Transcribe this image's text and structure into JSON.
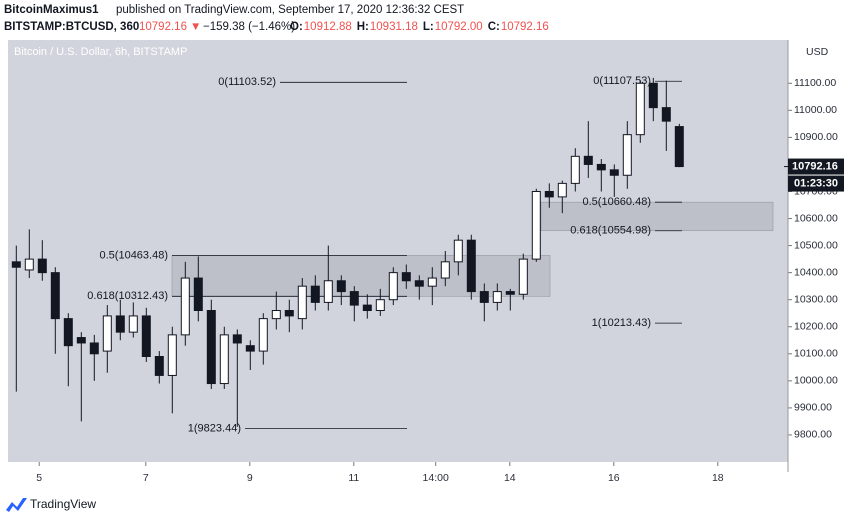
{
  "header": {
    "author": "BitcoinMaximus1",
    "published": "published on TradingView.com, September 17, 2020 12:36:32 CEST",
    "symbol": "BITSTAMP:BTCUSD, 360",
    "price": "10792.16",
    "arrow": "▼",
    "change": "−159.38 (−1.46%)",
    "ohlc": [
      {
        "label": "O:",
        "value": "10912.88"
      },
      {
        "label": "H:",
        "value": "10931.18"
      },
      {
        "label": "L:",
        "value": "10792.00"
      },
      {
        "label": "C:",
        "value": "10792.16"
      }
    ]
  },
  "chart_data": {
    "type": "candlestick",
    "title": "Bitcoin / U.S. Dollar, 6h, BITSTAMP",
    "y_unit": "USD",
    "open": [
      10440,
      10410,
      10450,
      10400,
      10230,
      10160,
      10140,
      10110,
      10240,
      10180,
      10240,
      10090,
      10020,
      10170,
      10380,
      10260,
      9990,
      10170,
      10130,
      10110,
      10230,
      10260,
      10230,
      10350,
      10290,
      10370,
      10330,
      10280,
      10260,
      10300,
      10400,
      10370,
      10350,
      10380,
      10440,
      10520,
      10330,
      10290,
      10330,
      10320,
      10450,
      10700,
      10680,
      10730,
      10830,
      10800,
      10780,
      10760,
      10910,
      11100,
      11010,
      10940
    ],
    "high": [
      10500,
      10560,
      10520,
      10420,
      10250,
      10180,
      10170,
      10280,
      10300,
      10290,
      10270,
      10110,
      10200,
      10440,
      10460,
      10300,
      10200,
      10190,
      10150,
      10250,
      10330,
      10300,
      10380,
      10390,
      10500,
      10390,
      10350,
      10320,
      10340,
      10420,
      10430,
      10390,
      10420,
      10480,
      10540,
      10540,
      10360,
      10360,
      10340,
      10470,
      10710,
      10730,
      10740,
      10860,
      10960,
      10820,
      10800,
      10960,
      11110,
      11120,
      11110,
      10950
    ],
    "low": [
      9960,
      10380,
      10370,
      10100,
      9980,
      9850,
      10000,
      10030,
      10150,
      10160,
      10070,
      9990,
      9880,
      10130,
      10220,
      9970,
      9970,
      9830,
      10040,
      10060,
      10190,
      10180,
      10190,
      10260,
      10260,
      10280,
      10220,
      10230,
      10240,
      10280,
      10340,
      10300,
      10280,
      10350,
      10390,
      10300,
      10220,
      10260,
      10260,
      10300,
      10440,
      10640,
      10620,
      10700,
      10750,
      10700,
      10680,
      10710,
      10880,
      10960,
      10850,
      10790
    ],
    "close": [
      10420,
      10450,
      10400,
      10230,
      10130,
      10140,
      10100,
      10240,
      10180,
      10240,
      10090,
      10020,
      10170,
      10380,
      10260,
      9990,
      10170,
      10140,
      10110,
      10230,
      10260,
      10240,
      10350,
      10290,
      10370,
      10330,
      10280,
      10260,
      10300,
      10400,
      10370,
      10350,
      10380,
      10440,
      10520,
      10330,
      10290,
      10330,
      10320,
      10450,
      10700,
      10680,
      10730,
      10830,
      10800,
      10780,
      10760,
      10910,
      11100,
      11010,
      10960,
      10792.16
    ],
    "ylim": [
      9700,
      11260
    ],
    "yticks": [
      {
        "value": 9800,
        "label": "9800.00"
      },
      {
        "value": 9900,
        "label": "9900.00"
      },
      {
        "value": 10000,
        "label": "10000.00"
      },
      {
        "value": 10100,
        "label": "10100.00"
      },
      {
        "value": 10200,
        "label": "10200.00"
      },
      {
        "value": 10300,
        "label": "10300.00"
      },
      {
        "value": 10400,
        "label": "10400.00"
      },
      {
        "value": 10500,
        "label": "10500.00"
      },
      {
        "value": 10600,
        "label": "10600.00"
      },
      {
        "value": 10700,
        "label": "10700.00"
      },
      {
        "value": 10800,
        "label": "10800.00"
      },
      {
        "value": 10900,
        "label": "10900.00"
      },
      {
        "value": 11000,
        "label": "11000.00"
      },
      {
        "value": 11100,
        "label": "11100.00"
      }
    ],
    "xlim": [
      -0.6,
      59.4
    ],
    "xticks": [
      {
        "value": 1.8,
        "label": "5"
      },
      {
        "value": 10,
        "label": "7"
      },
      {
        "value": 18,
        "label": "9"
      },
      {
        "value": 26,
        "label": "11"
      },
      {
        "value": 32.3,
        "label": "14:00"
      },
      {
        "value": 38,
        "label": "14"
      },
      {
        "value": 46,
        "label": "16"
      },
      {
        "value": 54,
        "label": "18"
      }
    ],
    "last_price": 10792.16,
    "countdown": "01:23:30",
    "fibs": [
      {
        "label": "0(11103.52)",
        "value": 11103.52
      },
      {
        "label": "0.5(10463.48)",
        "value": 10463.48
      },
      {
        "label": "0.618(10312.43)",
        "value": 10312.43
      },
      {
        "label": "1(9823.44)",
        "value": 9823.44
      },
      {
        "label": "0(11107.53)",
        "value": 11107.53
      },
      {
        "label": "0.5(10660.48)",
        "value": 10660.48
      },
      {
        "label": "0.618(10554.98)",
        "value": 10554.98
      },
      {
        "label": "1(10213.43)",
        "value": 10213.43
      }
    ],
    "up_color": "#ffffff",
    "down_color": "#131722",
    "background": "#d1d4dc"
  },
  "footer": {
    "brand": "TradingView"
  }
}
